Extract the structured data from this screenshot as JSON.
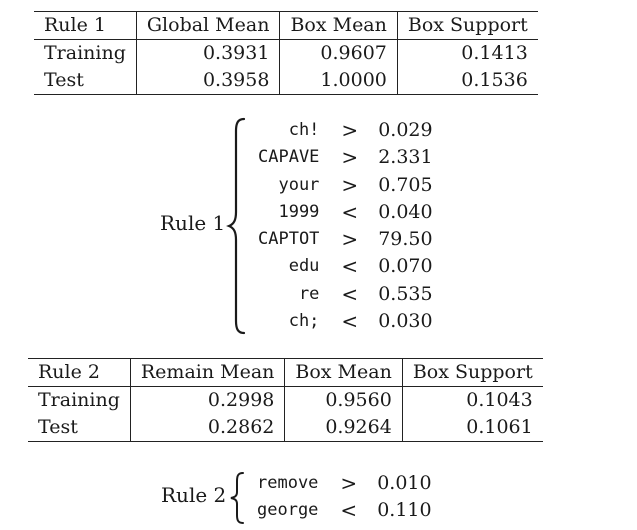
{
  "table1": {
    "headers": [
      "Rule 1",
      "Global Mean",
      "Box Mean",
      "Box Support"
    ],
    "rows": [
      [
        "Training",
        "0.3931",
        "0.9607",
        "0.1413"
      ],
      [
        "Test",
        "0.3958",
        "1.0000",
        "0.1536"
      ]
    ]
  },
  "rule1": {
    "label": "Rule 1",
    "conditions": [
      {
        "var": "ch!",
        "op": ">",
        "value": "0.029"
      },
      {
        "var": "CAPAVE",
        "op": ">",
        "value": "2.331"
      },
      {
        "var": "your",
        "op": ">",
        "value": "0.705"
      },
      {
        "var": "1999",
        "op": "<",
        "value": "0.040"
      },
      {
        "var": "CAPTOT",
        "op": ">",
        "value": "79.50"
      },
      {
        "var": "edu",
        "op": "<",
        "value": "0.070"
      },
      {
        "var": "re",
        "op": "<",
        "value": "0.535"
      },
      {
        "var": "ch;",
        "op": "<",
        "value": "0.030"
      }
    ]
  },
  "table2": {
    "headers": [
      "Rule 2",
      "Remain Mean",
      "Box Mean",
      "Box Support"
    ],
    "rows": [
      [
        "Training",
        "0.2998",
        "0.9560",
        "0.1043"
      ],
      [
        "Test",
        "0.2862",
        "0.9264",
        "0.1061"
      ]
    ]
  },
  "rule2": {
    "label": "Rule 2",
    "conditions": [
      {
        "var": "remove",
        "op": ">",
        "value": "0.010"
      },
      {
        "var": "george",
        "op": "<",
        "value": "0.110"
      }
    ]
  }
}
